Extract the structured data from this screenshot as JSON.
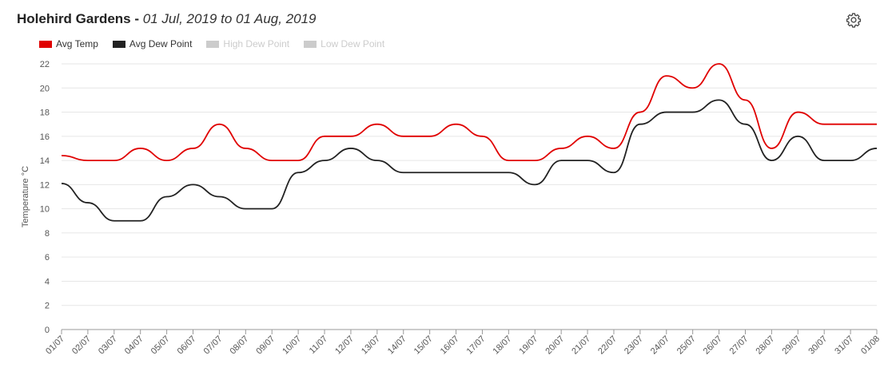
{
  "header": {
    "station": "Holehird Gardens",
    "separator": " - ",
    "date_range": "01 Jul, 2019 to 01 Aug, 2019"
  },
  "toolbar": {
    "settings_icon": "gear-icon"
  },
  "legend": [
    {
      "label": "Avg Temp",
      "color": "#e00000",
      "visible": true
    },
    {
      "label": "Avg Dew Point",
      "color": "#222222",
      "visible": true
    },
    {
      "label": "High Dew Point",
      "color": "#cccccc",
      "visible": false
    },
    {
      "label": "Low Dew Point",
      "color": "#cccccc",
      "visible": false
    }
  ],
  "chart_data": {
    "type": "line",
    "ylabel": "Temperature °C",
    "xlabel": "",
    "ylim": [
      0,
      22
    ],
    "yticks": [
      0,
      2,
      4,
      6,
      8,
      10,
      12,
      14,
      16,
      18,
      20,
      22
    ],
    "grid": "horizontal",
    "legend_position": "top-left",
    "categories": [
      "01/07",
      "02/07",
      "03/07",
      "04/07",
      "05/07",
      "06/07",
      "07/07",
      "08/07",
      "09/07",
      "10/07",
      "11/07",
      "12/07",
      "13/07",
      "14/07",
      "15/07",
      "16/07",
      "17/07",
      "18/07",
      "19/07",
      "20/07",
      "21/07",
      "22/07",
      "23/07",
      "24/07",
      "25/07",
      "26/07",
      "27/07",
      "28/07",
      "29/07",
      "30/07",
      "31/07",
      "01/08"
    ],
    "series": [
      {
        "name": "Avg Temp",
        "color": "#e00000",
        "values": [
          14.4,
          14,
          14,
          15,
          14,
          15,
          17,
          15,
          14,
          14,
          16,
          16,
          17,
          16,
          16,
          17,
          16,
          14,
          14,
          15,
          16,
          15,
          18,
          21,
          20,
          22,
          19,
          15,
          18,
          17,
          17,
          17
        ]
      },
      {
        "name": "Avg Dew Point",
        "color": "#222222",
        "values": [
          12.1,
          10.5,
          9,
          9,
          11,
          12,
          11,
          10,
          10,
          13,
          14,
          15,
          14,
          13,
          13,
          13,
          13,
          13,
          12,
          14,
          14,
          13,
          17,
          18,
          18,
          19,
          17,
          14,
          16,
          14,
          14,
          15
        ]
      }
    ]
  }
}
